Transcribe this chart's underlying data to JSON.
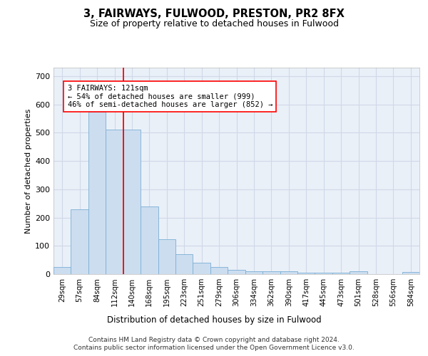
{
  "title1": "3, FAIRWAYS, FULWOOD, PRESTON, PR2 8FX",
  "title2": "Size of property relative to detached houses in Fulwood",
  "xlabel": "Distribution of detached houses by size in Fulwood",
  "ylabel": "Number of detached properties",
  "categories": [
    "29sqm",
    "57sqm",
    "84sqm",
    "112sqm",
    "140sqm",
    "168sqm",
    "195sqm",
    "223sqm",
    "251sqm",
    "279sqm",
    "306sqm",
    "334sqm",
    "362sqm",
    "390sqm",
    "417sqm",
    "445sqm",
    "473sqm",
    "501sqm",
    "528sqm",
    "556sqm",
    "584sqm"
  ],
  "values": [
    25,
    230,
    575,
    510,
    510,
    240,
    123,
    70,
    40,
    25,
    15,
    10,
    10,
    10,
    5,
    5,
    5,
    10,
    0,
    0,
    7
  ],
  "bar_color": "#ccddf0",
  "bar_edge_color": "#7aafd4",
  "vline_x": 3.5,
  "vline_color": "red",
  "annotation_text": "3 FAIRWAYS: 121sqm\n← 54% of detached houses are smaller (999)\n46% of semi-detached houses are larger (852) →",
  "annotation_box_color": "white",
  "annotation_box_edge_color": "red",
  "ylim": [
    0,
    730
  ],
  "yticks": [
    0,
    100,
    200,
    300,
    400,
    500,
    600,
    700
  ],
  "grid_color": "#d0d8e8",
  "background_color": "#eaf0f8",
  "footer1": "Contains HM Land Registry data © Crown copyright and database right 2024.",
  "footer2": "Contains public sector information licensed under the Open Government Licence v3.0."
}
